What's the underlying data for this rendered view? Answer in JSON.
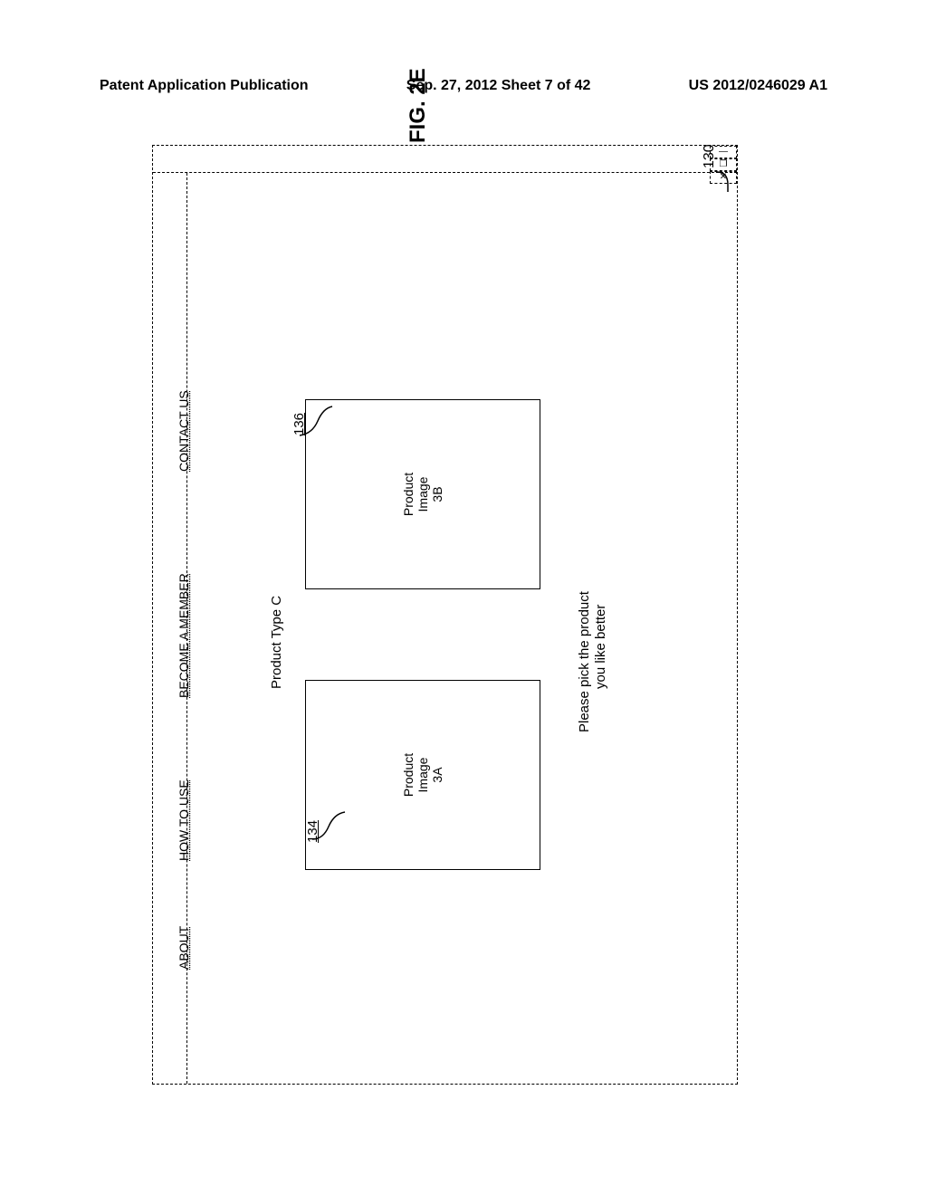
{
  "header": {
    "left": "Patent Application Publication",
    "center": "Sep. 27, 2012  Sheet 7 of 42",
    "right": "US 2012/0246029 A1"
  },
  "figure": {
    "label": "FIG. 2E",
    "window_ref": "130",
    "nav": {
      "about": "ABOUT",
      "how_to_use": "HOW TO USE",
      "become_member": "BECOME A MEMBER",
      "contact_us": "CONTACT US"
    },
    "type_label": "Product Type C",
    "product_a": {
      "label": "Product\nImage\n3A",
      "ref": "134"
    },
    "product_b": {
      "label": "Product\nImage\n3B",
      "ref": "136"
    },
    "instruction_line1": "Please pick the product",
    "instruction_line2": "you like better",
    "win_min": "—",
    "win_max": "❐",
    "win_close": "✕"
  }
}
